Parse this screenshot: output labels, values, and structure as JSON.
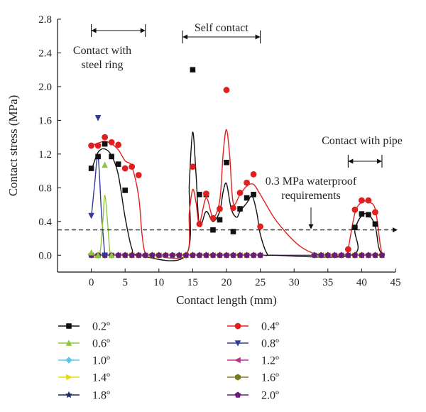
{
  "chart_data": {
    "type": "scatter",
    "xlabel": "Contact length (mm)",
    "ylabel": "Contact stress (MPa)",
    "xlim": [
      -5,
      45
    ],
    "ylim": [
      -0.2,
      2.8
    ],
    "xticks": [
      0,
      5,
      10,
      15,
      20,
      25,
      30,
      35,
      40,
      45
    ],
    "yticks": [
      0.0,
      0.4,
      0.8,
      1.2,
      1.6,
      2.0,
      2.4,
      2.8
    ],
    "xtick_labels": [
      "0",
      "5",
      "10",
      "15",
      "20",
      "25",
      "30",
      "35",
      "40",
      "45"
    ],
    "ytick_labels": [
      "0.0",
      "0.4",
      "0.8",
      "1.2",
      "1.6",
      "2.0",
      "2.4",
      "2.8"
    ],
    "grid": false,
    "legend_position": "below",
    "annotations": {
      "steel_ring": {
        "line1": "Contact with",
        "line2": "steel ring",
        "x_range": [
          0,
          8
        ]
      },
      "self_contact": {
        "text": "Self contact",
        "x_range": [
          13.5,
          25
        ]
      },
      "pipe": {
        "text": "Contact with pipe",
        "x_range": [
          38,
          43
        ]
      },
      "waterproof": {
        "line1": "0.3 MPa waterproof",
        "line2": "requirements",
        "y": 0.3
      }
    },
    "series": [
      {
        "name": "0.2º",
        "color": "#111111",
        "marker": "square",
        "points": [
          [
            0,
            1.03
          ],
          [
            1,
            1.17
          ],
          [
            2,
            1.32
          ],
          [
            3,
            1.17
          ],
          [
            4,
            1.08
          ],
          [
            5,
            0.77
          ],
          [
            15,
            2.2
          ],
          [
            16,
            0.72
          ],
          [
            17,
            0.72
          ],
          [
            18,
            0.3
          ],
          [
            19,
            0.42
          ],
          [
            20,
            1.1
          ],
          [
            21,
            0.28
          ],
          [
            22,
            0.55
          ],
          [
            23,
            0.68
          ],
          [
            24,
            0.72
          ],
          [
            39,
            0.33
          ],
          [
            40,
            0.49
          ],
          [
            41,
            0.48
          ],
          [
            42,
            0.37
          ]
        ],
        "curve": [
          [
            0,
            1.0
          ],
          [
            1,
            1.22
          ],
          [
            2,
            1.26
          ],
          [
            3,
            1.18
          ],
          [
            4,
            0.95
          ],
          [
            5,
            0.45
          ],
          [
            6,
            0.08
          ],
          [
            7,
            0.0
          ],
          [
            14,
            0.0
          ],
          [
            14.5,
            0.85
          ],
          [
            15,
            1.46
          ],
          [
            15.5,
            0.95
          ],
          [
            16,
            0.35
          ],
          [
            17,
            0.52
          ],
          [
            18,
            0.4
          ],
          [
            19,
            0.52
          ],
          [
            19.5,
            0.75
          ],
          [
            20,
            0.85
          ],
          [
            20.7,
            0.55
          ],
          [
            21.5,
            0.45
          ],
          [
            22,
            0.52
          ],
          [
            23,
            0.62
          ],
          [
            23.8,
            0.7
          ],
          [
            24.5,
            0.5
          ],
          [
            25,
            0.25
          ],
          [
            26,
            0.02
          ],
          [
            27,
            0.0
          ],
          [
            38.5,
            0.0
          ],
          [
            39,
            0.3
          ],
          [
            40,
            0.47
          ],
          [
            41,
            0.48
          ],
          [
            42,
            0.35
          ],
          [
            42.5,
            0.1
          ],
          [
            43,
            0.0
          ]
        ]
      },
      {
        "name": "0.4º",
        "color": "#e02020",
        "marker": "circle",
        "points": [
          [
            0,
            1.3
          ],
          [
            1,
            1.3
          ],
          [
            2,
            1.4
          ],
          [
            3,
            1.34
          ],
          [
            4,
            1.31
          ],
          [
            5,
            1.03
          ],
          [
            6,
            1.05
          ],
          [
            7,
            0.95
          ],
          [
            15,
            1.05
          ],
          [
            16,
            0.37
          ],
          [
            17,
            0.73
          ],
          [
            18,
            0.44
          ],
          [
            19,
            0.55
          ],
          [
            20,
            1.96
          ],
          [
            21,
            0.56
          ],
          [
            22,
            0.74
          ],
          [
            23,
            0.86
          ],
          [
            24,
            0.96
          ],
          [
            25,
            0.34
          ],
          [
            38,
            0.07
          ],
          [
            39,
            0.54
          ],
          [
            40,
            0.65
          ],
          [
            41,
            0.65
          ],
          [
            42,
            0.51
          ]
        ],
        "curve": [
          [
            0,
            1.3
          ],
          [
            1,
            1.33
          ],
          [
            2,
            1.35
          ],
          [
            3,
            1.32
          ],
          [
            4,
            1.25
          ],
          [
            5,
            1.12
          ],
          [
            6,
            1.05
          ],
          [
            7,
            0.7
          ],
          [
            7.5,
            0.25
          ],
          [
            8,
            0.02
          ],
          [
            9,
            0.0
          ],
          [
            14,
            0.0
          ],
          [
            14.5,
            0.5
          ],
          [
            15,
            0.78
          ],
          [
            15.5,
            0.62
          ],
          [
            16,
            0.38
          ],
          [
            17,
            0.68
          ],
          [
            18,
            0.45
          ],
          [
            19,
            0.65
          ],
          [
            19.5,
            1.2
          ],
          [
            20,
            1.49
          ],
          [
            20.5,
            1.15
          ],
          [
            21,
            0.62
          ],
          [
            22,
            0.72
          ],
          [
            23,
            0.82
          ],
          [
            24,
            0.84
          ],
          [
            25,
            0.72
          ],
          [
            27,
            0.45
          ],
          [
            29,
            0.25
          ],
          [
            31,
            0.1
          ],
          [
            33,
            0.02
          ],
          [
            35,
            0.0
          ],
          [
            37.5,
            0.0
          ],
          [
            38,
            0.08
          ],
          [
            39,
            0.5
          ],
          [
            40,
            0.63
          ],
          [
            41,
            0.63
          ],
          [
            42,
            0.55
          ],
          [
            42.7,
            0.15
          ],
          [
            43,
            0.0
          ]
        ]
      },
      {
        "name": "0.6º",
        "color": "#8cc63f",
        "marker": "triangle-up",
        "points": [
          [
            0,
            0.03
          ],
          [
            1,
            0.0
          ],
          [
            2,
            1.07
          ],
          [
            3,
            0.0
          ]
        ],
        "curve": [
          [
            0,
            0.0
          ],
          [
            1.2,
            0.0
          ],
          [
            1.7,
            0.4
          ],
          [
            2,
            0.71
          ],
          [
            2.4,
            0.4
          ],
          [
            2.8,
            0.0
          ],
          [
            3.2,
            0.0
          ]
        ]
      },
      {
        "name": "0.8º",
        "color": "#2e3a9a",
        "marker": "triangle-down",
        "points": [
          [
            0,
            0.47
          ],
          [
            1,
            1.63
          ],
          [
            2,
            0.0
          ]
        ],
        "curve": [
          [
            0,
            0.45
          ],
          [
            0.5,
            0.85
          ],
          [
            1,
            1.17
          ],
          [
            1.5,
            0.5
          ],
          [
            2,
            0.0
          ]
        ]
      },
      {
        "name": "1.0º",
        "color": "#5bc8e8",
        "marker": "diamond",
        "points": [],
        "curve": []
      },
      {
        "name": "1.2º",
        "color": "#b5338a",
        "marker": "triangle-left",
        "points": [],
        "curve": []
      },
      {
        "name": "1.4º",
        "color": "#e6dd00",
        "marker": "triangle-right",
        "points": [],
        "curve": []
      },
      {
        "name": "1.6º",
        "color": "#7a7a1a",
        "marker": "hexagon",
        "points": [],
        "curve": []
      },
      {
        "name": "1.8º",
        "color": "#1a2a5a",
        "marker": "star",
        "points": [],
        "curve": []
      },
      {
        "name": "2.0º",
        "color": "#6a1a7a",
        "marker": "pentagon",
        "points": [],
        "curve": [
          [
            0,
            0.0
          ],
          [
            43,
            0.0
          ]
        ]
      }
    ],
    "zero_marker_x": [
      0,
      1,
      2,
      3,
      4,
      5,
      6,
      7,
      8,
      9,
      10,
      11,
      12,
      13,
      14,
      15,
      16,
      17,
      18,
      19,
      20,
      21,
      22,
      23,
      24,
      25,
      33,
      34,
      35,
      36,
      37,
      38,
      39,
      40,
      41,
      42,
      43
    ]
  }
}
